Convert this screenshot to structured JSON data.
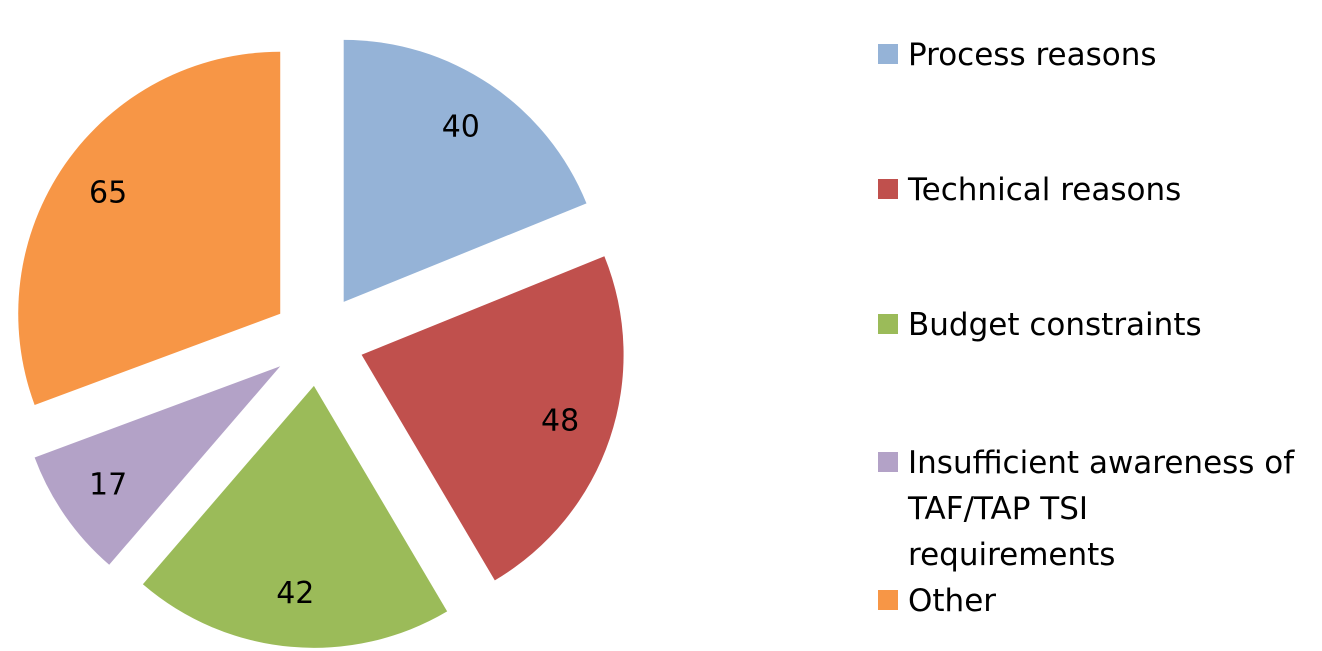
{
  "chart_data": {
    "type": "pie",
    "categories": [
      "Process reasons",
      "Technical reasons",
      "Budget constraints",
      "Insufficient awareness of TAF/TAP TSI requirements",
      "Other"
    ],
    "values": [
      40,
      48,
      42,
      17,
      65
    ],
    "colors": [
      "#95b3d7",
      "#c0504d",
      "#9bbb59",
      "#b3a2c7",
      "#f79646"
    ],
    "exploded": true,
    "legend": "right"
  }
}
